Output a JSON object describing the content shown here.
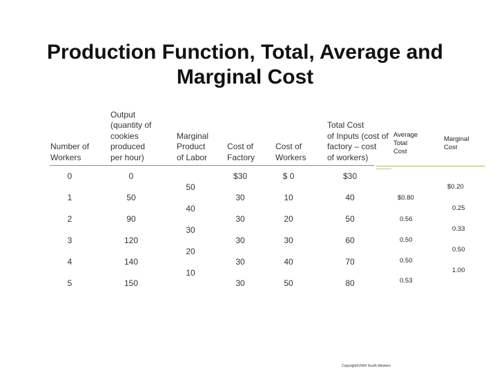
{
  "title": {
    "line1": "Production Function, Total, Average and",
    "line2": "Marginal Cost"
  },
  "table": {
    "headers": [
      {
        "key": "workers",
        "lines": [
          "Number of",
          "Workers"
        ]
      },
      {
        "key": "output",
        "lines": [
          "Output",
          "(quantity of",
          "cookies",
          "produced",
          "per hour)"
        ]
      },
      {
        "key": "mpl",
        "lines": [
          "Marginal",
          "Product",
          "of Labor"
        ]
      },
      {
        "key": "factory",
        "lines": [
          "Cost of",
          "Factory"
        ]
      },
      {
        "key": "workers_cost",
        "lines": [
          "Cost of",
          "Workers"
        ]
      },
      {
        "key": "total_cost",
        "lines": [
          "Total Cost",
          "of Inputs (cost of",
          "factory – cost",
          "of workers)"
        ]
      }
    ],
    "rows": [
      {
        "workers": "0",
        "output": "0",
        "factory": "$30",
        "workers_cost": "$  0",
        "total_cost": "$30"
      },
      {
        "workers": "1",
        "output": "50",
        "factory": "30",
        "workers_cost": "10",
        "total_cost": "40"
      },
      {
        "workers": "2",
        "output": "90",
        "factory": "30",
        "workers_cost": "20",
        "total_cost": "50"
      },
      {
        "workers": "3",
        "output": "120",
        "factory": "30",
        "workers_cost": "30",
        "total_cost": "60"
      },
      {
        "workers": "4",
        "output": "140",
        "factory": "30",
        "workers_cost": "40",
        "total_cost": "70"
      },
      {
        "workers": "5",
        "output": "150",
        "factory": "30",
        "workers_cost": "50",
        "total_cost": "80"
      }
    ],
    "mpl_values": [
      "50",
      "40",
      "30",
      "20",
      "10"
    ]
  },
  "avg_total_cost": {
    "header_lines": [
      "Average",
      "Total",
      "Cost"
    ],
    "values": [
      "$0.80",
      "0.56",
      "0.50",
      "0.50",
      "0.53"
    ]
  },
  "marginal_cost": {
    "header_lines": [
      "Marginal",
      "Cost"
    ],
    "values": [
      "$0.20",
      "0.25",
      "0.33",
      "0.50",
      "1.00"
    ]
  },
  "copyright": "Copyright©2004  South-Western"
}
